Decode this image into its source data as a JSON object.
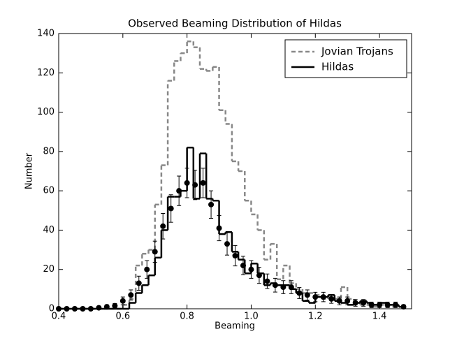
{
  "chart_data": {
    "type": "histogram",
    "title": "Observed Beaming Distribution of Hildas",
    "x_label": "Beaming",
    "y_label": "Number",
    "bins": [
      0.4,
      0.42,
      0.44,
      0.46,
      0.48,
      0.5,
      0.52,
      0.54,
      0.56,
      0.58,
      0.6,
      0.62,
      0.64,
      0.66,
      0.68,
      0.7,
      0.72,
      0.74,
      0.76,
      0.78,
      0.8,
      0.82,
      0.84,
      0.86,
      0.88,
      0.9,
      0.92,
      0.94,
      0.96,
      0.98,
      1.0,
      1.02,
      1.04,
      1.06,
      1.08,
      1.1,
      1.12,
      1.14,
      1.16,
      1.18,
      1.2,
      1.22,
      1.24,
      1.26,
      1.28,
      1.3,
      1.32,
      1.34,
      1.36,
      1.38,
      1.4,
      1.42,
      1.44,
      1.46,
      1.48
    ],
    "series": [
      {
        "name": "Jovian Trojans",
        "color": "#888888",
        "dashed": true,
        "values": [
          0,
          0,
          0,
          0,
          0,
          0,
          0,
          0,
          0,
          0,
          2,
          5,
          22,
          28,
          30,
          53,
          73,
          116,
          126,
          130,
          136,
          133,
          122,
          121,
          123,
          101,
          94,
          75,
          70,
          55,
          48,
          40,
          25,
          33,
          15,
          22,
          13,
          10,
          8,
          8,
          7,
          5,
          6,
          5,
          11,
          5,
          3,
          2,
          2,
          1,
          2,
          1,
          1,
          1
        ]
      },
      {
        "name": "Hildas",
        "color": "#000000",
        "dashed": false,
        "values": [
          0,
          0,
          0,
          0,
          0,
          0,
          0,
          0,
          0,
          0,
          0,
          3,
          8,
          12,
          17,
          26,
          40,
          57,
          57,
          60,
          82,
          56,
          79,
          56,
          55,
          38,
          39,
          29,
          25,
          18,
          23,
          18,
          12,
          13,
          12,
          12,
          10,
          8,
          4,
          3,
          6,
          6,
          7,
          4,
          3,
          2,
          3,
          4,
          3,
          2,
          3,
          2,
          2,
          1
        ]
      }
    ],
    "points": {
      "color": "#000000",
      "x": [
        0.4,
        0.425,
        0.45,
        0.475,
        0.5,
        0.525,
        0.55,
        0.575,
        0.6,
        0.625,
        0.65,
        0.675,
        0.7,
        0.725,
        0.75,
        0.775,
        0.8,
        0.825,
        0.85,
        0.875,
        0.9,
        0.925,
        0.95,
        0.975,
        1.0,
        1.025,
        1.05,
        1.075,
        1.1,
        1.125,
        1.15,
        1.175,
        1.2,
        1.225,
        1.25,
        1.275,
        1.3,
        1.325,
        1.35,
        1.375,
        1.4,
        1.425,
        1.45,
        1.475
      ],
      "values": [
        0,
        0,
        0,
        0,
        0,
        0.5,
        1,
        1.5,
        4,
        7,
        13,
        20,
        29,
        42,
        51,
        60,
        64,
        63,
        64,
        53,
        41,
        33,
        27,
        22,
        20,
        17,
        14,
        12,
        11,
        11,
        8,
        7,
        6,
        6,
        5,
        4,
        4,
        3,
        3,
        2,
        2,
        2,
        2,
        1
      ],
      "errors": [
        0,
        0,
        0,
        0,
        0,
        0.7,
        1,
        1.2,
        2,
        2.6,
        3.6,
        4.5,
        5.4,
        6.5,
        7,
        7.5,
        7.5,
        7.5,
        7.5,
        7,
        6.4,
        5.7,
        5.2,
        4.7,
        4.5,
        4.1,
        3.7,
        3.5,
        3.3,
        3.3,
        2.8,
        2.6,
        2.4,
        2.4,
        2.2,
        2,
        2,
        1.7,
        1.7,
        1.4,
        1.4,
        1.4,
        1.4,
        1
      ]
    },
    "xlim": [
      0.4,
      1.5
    ],
    "ylim": [
      0,
      140
    ],
    "xticks": [
      0.4,
      0.6,
      0.8,
      {
        "value": 1,
        "label": "1.0"
      },
      1.2,
      1.4
    ],
    "yticks": [
      0,
      20,
      40,
      60,
      80,
      100,
      120,
      140
    ],
    "legend": "upper right"
  }
}
